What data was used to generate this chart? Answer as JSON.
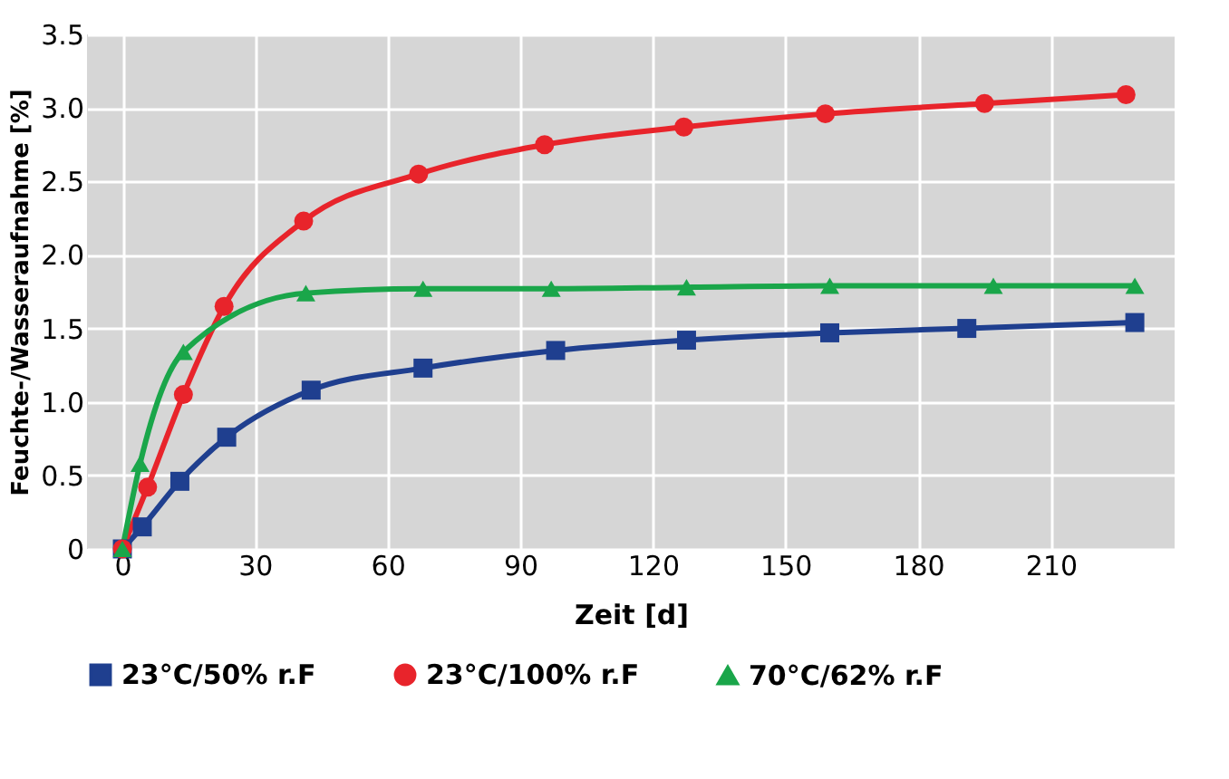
{
  "chart_data": {
    "type": "line",
    "xlabel": "Zeit [d]",
    "ylabel": "Feuchte-/Wasseraufnahme [%]",
    "xlim": [
      -8,
      238
    ],
    "xticks": [
      0,
      30,
      60,
      90,
      120,
      150,
      180,
      210
    ],
    "ylim": [
      0,
      3.5
    ],
    "yticks": [
      0,
      0.5,
      {
        "value": 1,
        "label": "1.0"
      },
      1.5,
      {
        "value": 2,
        "label": "2.0"
      },
      2.5,
      {
        "value": 3,
        "label": "3.0"
      },
      3.5
    ],
    "grid": true,
    "legend": "bottom",
    "series": [
      {
        "name": "23°C/50% r.F",
        "color": "#1f3f8f",
        "marker": "square",
        "x": [
          0,
          4.5,
          13,
          23.6,
          42.7,
          68,
          98,
          127.6,
          160,
          191,
          229
        ],
        "values": [
          0,
          0.15,
          0.46,
          0.76,
          1.08,
          1.23,
          1.35,
          1.42,
          1.47,
          1.5,
          1.54
        ]
      },
      {
        "name": "23°C/100% r.F",
        "color": "#e8242b",
        "marker": "circle",
        "x": [
          0,
          5.7,
          13.8,
          23,
          41,
          67,
          95.5,
          127,
          159,
          195,
          227
        ],
        "values": [
          0,
          0.42,
          1.05,
          1.65,
          2.23,
          2.55,
          2.75,
          2.87,
          2.96,
          3.03,
          3.09
        ]
      },
      {
        "name": "70°C/62% r.F",
        "color": "#1aa64a",
        "marker": "triangle",
        "x": [
          0,
          4,
          13.8,
          41.5,
          68,
          97,
          127.6,
          160,
          197,
          229
        ],
        "values": [
          0,
          0.58,
          1.34,
          1.74,
          1.77,
          1.77,
          1.78,
          1.79,
          1.79,
          1.79
        ]
      }
    ]
  }
}
